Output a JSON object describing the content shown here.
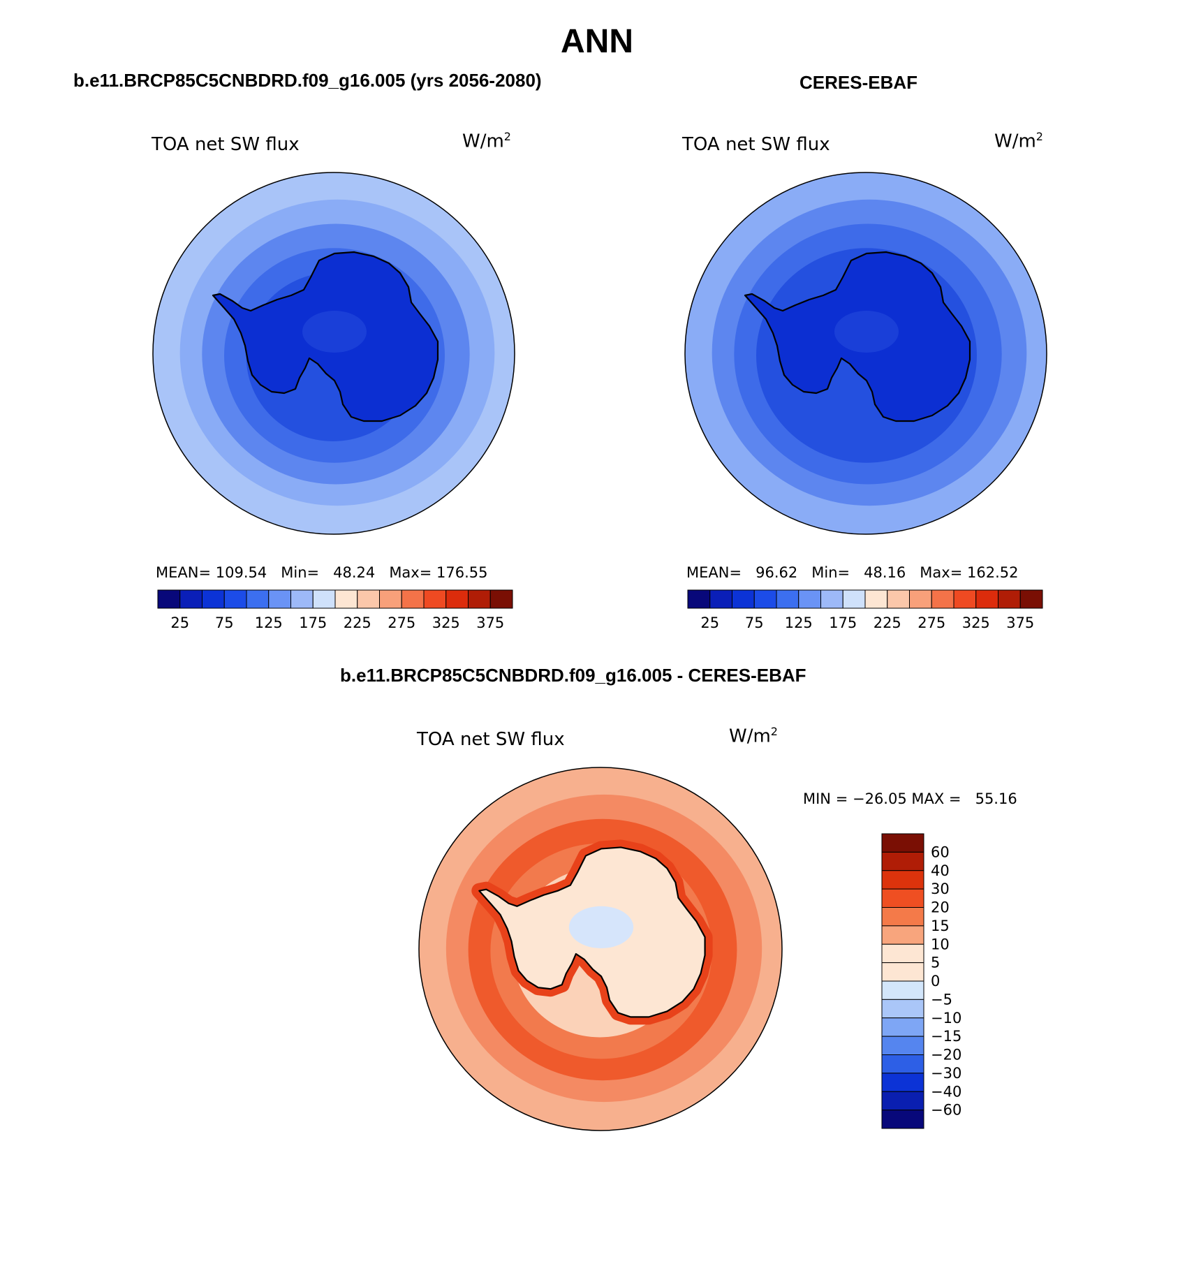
{
  "page_title": "ANN",
  "panels": [
    {
      "case_title": "b.e11.BRCP85C5CNBDRD.f09_g16.005 (yrs 2056-2080)",
      "variable": "TOA net SW flux",
      "units": "W/m",
      "units_exp": "2",
      "stats_text": {
        "mean_label": "MEAN=",
        "mean": "109.54",
        "min_label": "Min=",
        "min": "48.24",
        "max_label": "Max=",
        "max": "176.55"
      }
    },
    {
      "case_title": "CERES-EBAF",
      "variable": "TOA net SW flux",
      "units": "W/m",
      "units_exp": "2",
      "stats_text": {
        "mean_label": "MEAN=",
        "mean": "96.62",
        "min_label": "Min=",
        "min": "48.16",
        "max_label": "Max=",
        "max": "162.52"
      }
    },
    {
      "case_title": "b.e11.BRCP85C5CNBDRD.f09_g16.005 - CERES-EBAF",
      "variable": "TOA net SW flux",
      "units": "W/m",
      "units_exp": "2",
      "stats_text": {
        "min_label": "MIN =",
        "min": "−26.05",
        "max_label": "MAX =",
        "max": "55.16"
      }
    }
  ],
  "colorbars": {
    "absolute": {
      "colors": [
        "#08087a",
        "#0a1fb8",
        "#0c33d6",
        "#1c4ce8",
        "#3c6ff0",
        "#6a93f5",
        "#9db9f8",
        "#cfe1fb",
        "#fde6d3",
        "#fbc7aa",
        "#f8a07a",
        "#f47349",
        "#ef4a22",
        "#dc2c0c",
        "#b01d06",
        "#7a0f04"
      ],
      "ticks": [
        "25",
        "75",
        "125",
        "175",
        "225",
        "275",
        "325",
        "375"
      ]
    },
    "difference": {
      "colors": [
        "#7a0f04",
        "#b01d06",
        "#dc330c",
        "#ef4f22",
        "#f47a49",
        "#f8a57d",
        "#fde6d3",
        "#d3e6fb",
        "#aac6f8",
        "#7ea6f5",
        "#5585ef",
        "#2d5fe6",
        "#0c33d6",
        "#0a1fb0",
        "#08087a"
      ],
      "ticks": [
        "60",
        "40",
        "30",
        "20",
        "15",
        "10",
        "5",
        "0",
        "−5",
        "−10",
        "−15",
        "−20",
        "−30",
        "−40",
        "−60"
      ]
    }
  },
  "map_fills": {
    "model": {
      "rings": [
        "#a9c4f8",
        "#8aacf6",
        "#5d86ef",
        "#3e6be9",
        "#2450df"
      ],
      "land": "#0c2fd2",
      "land_patch": "#1a3fd8"
    },
    "obs": {
      "rings": [
        "#8aacf6",
        "#5d86ef",
        "#3e6be9",
        "#2450df"
      ],
      "land": "#0c2fd2",
      "land_patch": "#1a3fd8"
    },
    "diff": {
      "rings": [
        "#f7b08e",
        "#f48a63",
        "#ef5a2c",
        "#f27a4d",
        "#fbd2b8"
      ],
      "land": "#fde6d3",
      "land_patch": "#d6e5fb",
      "coast_band": "#e8421a"
    }
  }
}
